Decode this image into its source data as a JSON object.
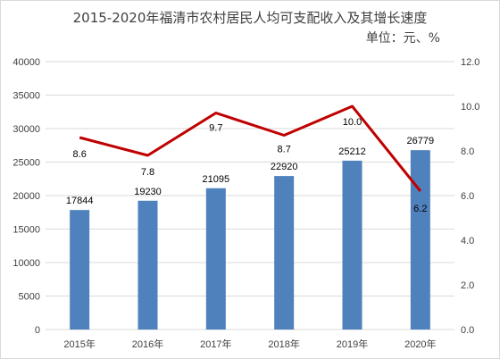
{
  "chart_data": {
    "type": "bar",
    "title": "2015-2020年福清市农村居民人均可支配收入及其增长速度",
    "unit_label": "单位：元、%",
    "categories": [
      "2015年",
      "2016年",
      "2017年",
      "2018年",
      "2019年",
      "2020年"
    ],
    "series": [
      {
        "type": "bar",
        "axis": "left",
        "values": [
          17844,
          19230,
          21095,
          22920,
          25212,
          26779
        ]
      },
      {
        "type": "line",
        "axis": "right",
        "values": [
          8.6,
          7.8,
          9.7,
          8.7,
          10.0,
          6.2
        ]
      }
    ],
    "y_left": {
      "min": 0,
      "max": 40000,
      "ticks": [
        "0",
        "5000",
        "10000",
        "15000",
        "20000",
        "25000",
        "30000",
        "35000",
        "40000"
      ]
    },
    "y_right": {
      "min": 0,
      "max": 12,
      "ticks": [
        "0.0",
        "2.0",
        "4.0",
        "6.0",
        "8.0",
        "10.0",
        "12.0"
      ]
    },
    "bar_labels": [
      "17844",
      "19230",
      "21095",
      "22920",
      "25212",
      "26779"
    ],
    "line_labels": [
      "8.6",
      "7.8",
      "9.7",
      "8.7",
      "10.0",
      "6.2"
    ],
    "grid": true,
    "legend": "none",
    "colors": {
      "bar": "#4f81bd",
      "line": "#c00000",
      "grid": "#d9d9d9",
      "axis_text": "#404040"
    }
  }
}
